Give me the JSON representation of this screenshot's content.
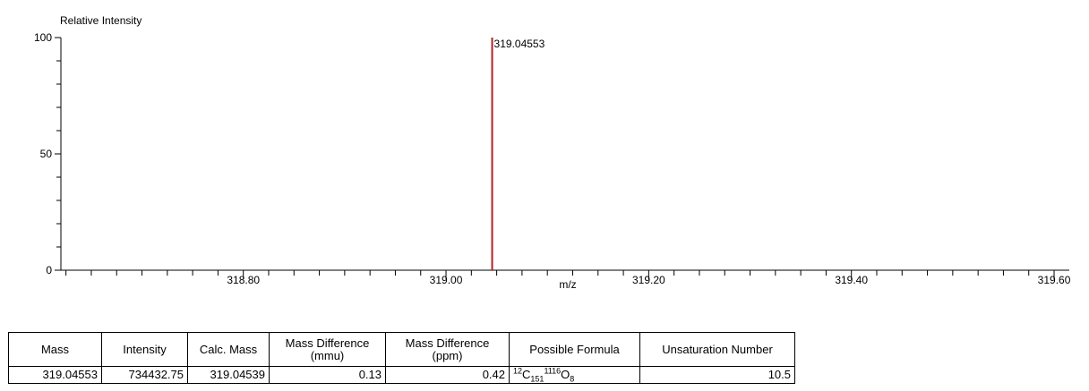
{
  "chart_data": {
    "type": "bar",
    "ylabel": "Relative Intensity",
    "xlabel": "m/z",
    "ylim": [
      0,
      100
    ],
    "yticks": [
      "0",
      "50",
      "100"
    ],
    "xticks": [
      "318.80",
      "319.00",
      "319.20",
      "319.40",
      "319.60"
    ],
    "xlim": [
      318.62,
      319.615
    ],
    "peaks": [
      {
        "mz": 319.04553,
        "intensity": 100,
        "label": "319.04553"
      }
    ],
    "peak_color": "#b22222"
  },
  "table": {
    "headers": [
      "Mass",
      "Intensity",
      "Calc. Mass",
      "Mass Difference (mmu)",
      "Mass Difference (ppm)",
      "Possible Formula",
      "Unsaturation Number"
    ],
    "rows": [
      [
        "319.04553",
        "734432.75",
        "319.04539",
        "0.13",
        "0.42",
        "12C151H1116O8",
        "10.5"
      ]
    ]
  }
}
